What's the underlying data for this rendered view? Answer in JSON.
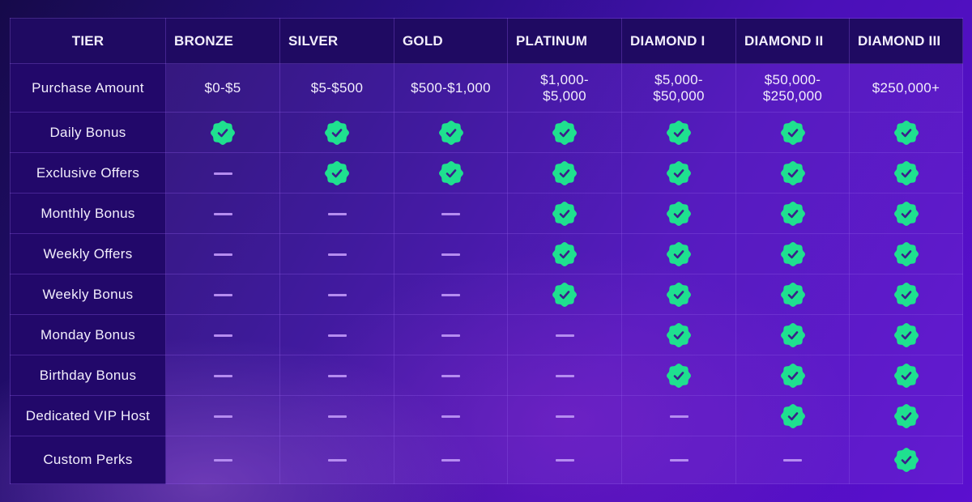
{
  "table": {
    "header": [
      "TIER",
      "BRONZE",
      "SILVER",
      "GOLD",
      "PLATINUM",
      "DIAMOND I",
      "DIAMOND II",
      "DIAMOND III"
    ],
    "purchase_row": {
      "label": "Purchase Amount",
      "values": [
        "$0-$5",
        "$5-$500",
        "$500-$1,000",
        "$1,000-\n$5,000",
        "$5,000-\n$50,000",
        "$50,000-\n$250,000",
        "$250,000+"
      ]
    },
    "feature_rows": [
      {
        "label": "Daily Bonus",
        "values": [
          true,
          true,
          true,
          true,
          true,
          true,
          true
        ]
      },
      {
        "label": "Exclusive Offers",
        "values": [
          false,
          true,
          true,
          true,
          true,
          true,
          true
        ]
      },
      {
        "label": "Monthly Bonus",
        "values": [
          false,
          false,
          false,
          true,
          true,
          true,
          true
        ]
      },
      {
        "label": "Weekly Offers",
        "values": [
          false,
          false,
          false,
          true,
          true,
          true,
          true
        ]
      },
      {
        "label": "Weekly Bonus",
        "values": [
          false,
          false,
          false,
          true,
          true,
          true,
          true
        ]
      },
      {
        "label": "Monday Bonus",
        "values": [
          false,
          false,
          false,
          false,
          true,
          true,
          true
        ]
      },
      {
        "label": "Birthday Bonus",
        "values": [
          false,
          false,
          false,
          false,
          true,
          true,
          true
        ]
      },
      {
        "label": "Dedicated VIP Host",
        "values": [
          false,
          false,
          false,
          false,
          false,
          true,
          true
        ]
      },
      {
        "label": "Custom Perks",
        "values": [
          false,
          false,
          false,
          false,
          false,
          false,
          true
        ]
      }
    ]
  },
  "icons": {
    "included": "check-badge-icon",
    "not_included": "dash-icon"
  },
  "colors": {
    "check_badge": "#1fe08f",
    "check_mark": "#3a1f8a",
    "dash": "#b58cf0",
    "header_bg": "#1f0a62",
    "label_bg": "#22086a"
  }
}
